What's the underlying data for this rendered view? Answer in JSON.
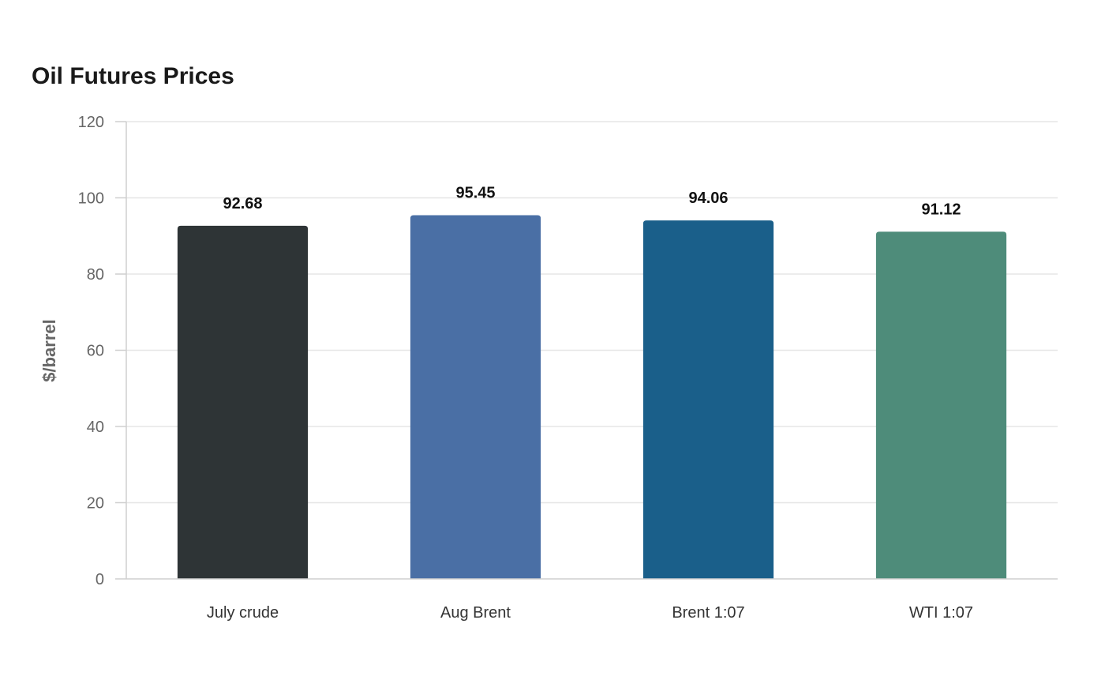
{
  "chart_data": {
    "type": "bar",
    "title": "Oil Futures Prices",
    "xlabel": "",
    "ylabel": "$/barrel",
    "categories": [
      "July crude",
      "Aug Brent",
      "Brent 1:07",
      "WTI 1:07"
    ],
    "values": [
      92.68,
      95.45,
      94.06,
      91.12
    ],
    "value_labels": [
      "92.68",
      "95.45",
      "94.06",
      "91.12"
    ],
    "bar_colors": [
      "#2e3436",
      "#4a6fa5",
      "#1a5f8a",
      "#4e8c7a"
    ],
    "ylim": [
      0,
      120
    ],
    "yticks": [
      0,
      20,
      40,
      60,
      80,
      100,
      120
    ],
    "ytick_labels": [
      "0",
      "20",
      "40",
      "60",
      "80",
      "100",
      "120"
    ],
    "grid": true,
    "legend": "none"
  }
}
